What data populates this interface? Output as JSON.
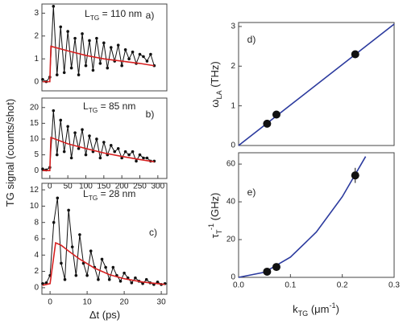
{
  "chart_data": [
    {
      "type": "line",
      "panel": "a)",
      "ylabel": [
        {
          "text": "TG signal (counts/shot)"
        }
      ],
      "annotation": [
        {
          "text": "L"
        },
        {
          "text": "TG",
          "script": "sub"
        },
        {
          "text": " = 110 nm"
        }
      ],
      "xlim": [
        -22,
        325
      ],
      "ylim": [
        -0.4,
        3.4
      ],
      "yticks": [
        0,
        1,
        2,
        3
      ],
      "series": [
        {
          "color": "#111111",
          "style": "line+markers",
          "x": [
            -20,
            -10,
            0,
            10,
            20,
            30,
            40,
            50,
            60,
            70,
            80,
            90,
            100,
            110,
            120,
            130,
            140,
            150,
            160,
            170,
            180,
            190,
            200,
            210,
            220,
            230,
            240,
            250,
            260,
            270,
            280,
            290
          ],
          "values": [
            0.1,
            0,
            0.2,
            3.3,
            0.3,
            2.4,
            0.4,
            2.2,
            0.6,
            1.9,
            0.3,
            2.1,
            0.7,
            1.8,
            0.5,
            1.9,
            0.8,
            1.7,
            0.6,
            1.5,
            0.9,
            1.6,
            0.7,
            1.4,
            1.0,
            1.3,
            0.8,
            1.2,
            1.1,
            0.9,
            1.2,
            0.7
          ]
        },
        {
          "color": "#d62020",
          "style": "line",
          "x": [
            -20,
            0,
            3,
            50,
            100,
            150,
            200,
            250,
            290
          ],
          "values": [
            0,
            0,
            1.55,
            1.35,
            1.15,
            1.0,
            0.9,
            0.8,
            0.7
          ]
        }
      ]
    },
    {
      "type": "line",
      "panel": "b)",
      "annotation": [
        {
          "text": "L"
        },
        {
          "text": "TG",
          "script": "sub"
        },
        {
          "text": " = 85 nm"
        }
      ],
      "xlim": [
        -22,
        325
      ],
      "ylim": [
        -2.5,
        23
      ],
      "yticks": [
        0,
        5,
        10,
        15,
        20
      ],
      "xticks": [
        0,
        50,
        100,
        150,
        200,
        250,
        300
      ],
      "series": [
        {
          "color": "#111111",
          "style": "line+markers",
          "x": [
            -20,
            -10,
            0,
            10,
            20,
            30,
            40,
            50,
            60,
            70,
            80,
            90,
            100,
            110,
            120,
            130,
            140,
            150,
            160,
            170,
            180,
            190,
            200,
            210,
            220,
            230,
            240,
            250,
            260,
            270,
            280,
            290
          ],
          "values": [
            0.5,
            0.2,
            1,
            19,
            5,
            16,
            6,
            14,
            4,
            12,
            7,
            13,
            5,
            11,
            6,
            10,
            4,
            9,
            5,
            8,
            6,
            7,
            4,
            6,
            5,
            6,
            3,
            5,
            4,
            4,
            3,
            3
          ]
        },
        {
          "color": "#d62020",
          "style": "line",
          "x": [
            -20,
            0,
            3,
            50,
            100,
            150,
            200,
            250,
            290
          ],
          "values": [
            0,
            0,
            10.5,
            8.5,
            7,
            5.6,
            4.5,
            3.5,
            2.8
          ]
        }
      ]
    },
    {
      "type": "line",
      "panel": "c)",
      "annotation": [
        {
          "text": "L"
        },
        {
          "text": "TG",
          "script": "sub"
        },
        {
          "text": " = 28 nm"
        }
      ],
      "xlabel": [
        {
          "text": "Δt (ps)"
        }
      ],
      "xlim": [
        -2.2,
        31.5
      ],
      "ylim": [
        -0.8,
        12.8
      ],
      "yticks": [
        0,
        2,
        4,
        6,
        8,
        10,
        12
      ],
      "xticks": [
        0,
        10,
        20,
        30
      ],
      "series": [
        {
          "color": "#111111",
          "style": "line+markers",
          "x": [
            -2,
            -1,
            0,
            1,
            2,
            3,
            4,
            5,
            6,
            7,
            8,
            9,
            10,
            11,
            12,
            13,
            14,
            15,
            16,
            17,
            18,
            19,
            20,
            21,
            22,
            23,
            24,
            25,
            26,
            27,
            28,
            29,
            30,
            31
          ],
          "values": [
            0.5,
            0.6,
            1.5,
            8,
            11,
            3,
            1,
            9.5,
            5,
            1.5,
            6.5,
            3,
            1.5,
            4.5,
            2.5,
            1,
            3.5,
            2.5,
            1,
            2.5,
            1.5,
            0.8,
            1.8,
            1.2,
            0.6,
            1.2,
            0.8,
            0.5,
            1,
            0.6,
            0.4,
            0.7,
            0.4,
            0.5
          ]
        },
        {
          "color": "#d62020",
          "style": "line",
          "x": [
            -2,
            0,
            1.5,
            3,
            5,
            8,
            12,
            16,
            20,
            25,
            31
          ],
          "values": [
            0.3,
            0.5,
            5.5,
            5.2,
            4.5,
            3.5,
            2.4,
            1.6,
            1.1,
            0.7,
            0.4
          ]
        }
      ]
    },
    {
      "type": "scatter",
      "panel": "d)",
      "ylabel": [
        {
          "text": "ω"
        },
        {
          "text": "LA",
          "script": "sub"
        },
        {
          "text": " (THz)"
        }
      ],
      "xlim": [
        0,
        0.3
      ],
      "ylim": [
        0,
        3.1
      ],
      "yticks": [
        0,
        1,
        2,
        3
      ],
      "series": [
        {
          "color": "#2b3a9e",
          "style": "line",
          "x": [
            0,
            0.3
          ],
          "values": [
            0,
            3.06
          ]
        },
        {
          "color": "#111111",
          "style": "markers",
          "x": [
            0.055,
            0.073,
            0.225
          ],
          "values": [
            0.55,
            0.78,
            2.3
          ]
        }
      ]
    },
    {
      "type": "scatter",
      "panel": "e)",
      "ylabel": [
        {
          "text": "τ"
        },
        {
          "text": "T",
          "script": "sub"
        },
        {
          "text": "-1",
          "script": "super"
        },
        {
          "text": " (GHz)"
        }
      ],
      "xlabel": [
        {
          "text": "k"
        },
        {
          "text": "TG",
          "script": "sub"
        },
        {
          "text": " (μm"
        },
        {
          "text": "-1",
          "script": "super"
        },
        {
          "text": ")"
        }
      ],
      "xlim": [
        0,
        0.3
      ],
      "ylim": [
        0,
        66
      ],
      "yticks": [
        0,
        20,
        40,
        60
      ],
      "xticks": [
        {
          "value": 0,
          "label": "0.0"
        },
        0.1,
        0.2,
        0.3
      ],
      "series": [
        {
          "color": "#2b3a9e",
          "style": "line",
          "x": [
            0,
            0.05,
            0.1,
            0.15,
            0.2,
            0.245
          ],
          "values": [
            0,
            2.7,
            10.7,
            24,
            42.7,
            64
          ]
        },
        {
          "color": "#111111",
          "style": "markers",
          "x": [
            0.055,
            0.073,
            0.225
          ],
          "values": [
            3,
            5.5,
            54
          ],
          "errors": [
            null,
            null,
            4
          ]
        }
      ]
    }
  ]
}
